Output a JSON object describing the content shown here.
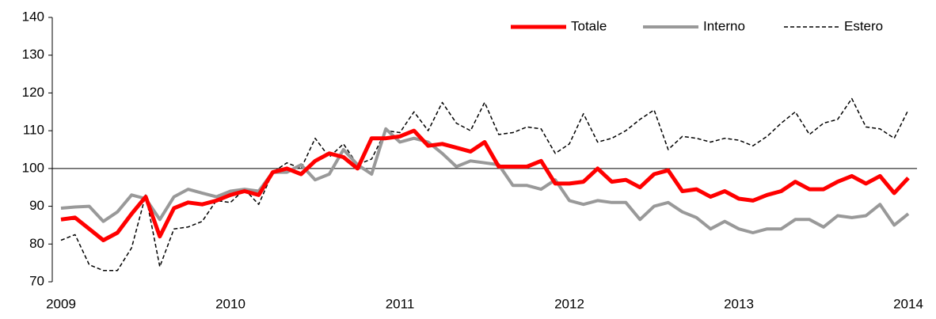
{
  "chart_data": {
    "type": "line",
    "categories": [
      "2009",
      null,
      null,
      null,
      null,
      null,
      null,
      null,
      null,
      null,
      null,
      null,
      "2010",
      null,
      null,
      null,
      null,
      null,
      null,
      null,
      null,
      null,
      null,
      null,
      "2011",
      null,
      null,
      null,
      null,
      null,
      null,
      null,
      null,
      null,
      null,
      null,
      "2012",
      null,
      null,
      null,
      null,
      null,
      null,
      null,
      null,
      null,
      null,
      null,
      "2013",
      null,
      null,
      null,
      null,
      null,
      null,
      null,
      null,
      null,
      null,
      null,
      "2014"
    ],
    "series": [
      {
        "name": "Totale",
        "color": "#ff0000",
        "width": 5,
        "dashed": false,
        "values": [
          86.5,
          87,
          84,
          81,
          83,
          88,
          92.5,
          82,
          89.5,
          91,
          90.5,
          91.5,
          93,
          94,
          93,
          99,
          100,
          98.5,
          102,
          104,
          103,
          100,
          108,
          108,
          108.5,
          110,
          106,
          106.5,
          105.5,
          104.5,
          107,
          100.5,
          100.5,
          100.5,
          102,
          96,
          96,
          96.5,
          100,
          96.5,
          97,
          95,
          98.5,
          99.5,
          94,
          94.5,
          92.5,
          94,
          92,
          91.5,
          93,
          94,
          96.5,
          94.5,
          94.5,
          96.5,
          98,
          96,
          98,
          93.5,
          97.5
        ]
      },
      {
        "name": "Interno",
        "color": "#999999",
        "width": 4,
        "dashed": false,
        "values": [
          89.5,
          89.8,
          90,
          86,
          88.5,
          93,
          92,
          86.5,
          92.5,
          94.5,
          93.5,
          92.5,
          94,
          94.5,
          94,
          99,
          99,
          101,
          97,
          98.5,
          105,
          101,
          98.5,
          110.5,
          107,
          108,
          107,
          104,
          100.5,
          102,
          101.5,
          101,
          95.5,
          95.5,
          94.5,
          97,
          91.5,
          90.5,
          91.5,
          91,
          91,
          86.5,
          90,
          91,
          88.5,
          87,
          84,
          86,
          84,
          83,
          84,
          84,
          86.5,
          86.5,
          84.5,
          87.5,
          87,
          87.5,
          90.5,
          85,
          88
        ]
      },
      {
        "name": "Estero",
        "color": "#000000",
        "width": 1.5,
        "dashed": true,
        "values": [
          81,
          82.5,
          74.5,
          73,
          73,
          79,
          93,
          74,
          84,
          84.5,
          86,
          91.5,
          91,
          94.5,
          90.5,
          99,
          101.5,
          100,
          108,
          103,
          106.5,
          101,
          102.5,
          110,
          109.5,
          115,
          110,
          117.5,
          112,
          110,
          117.5,
          109,
          109.5,
          111,
          110.5,
          104,
          106.5,
          114.5,
          107,
          108,
          110,
          113,
          115.5,
          105,
          108.5,
          108,
          107,
          108,
          107.5,
          106,
          108.5,
          112,
          115,
          109,
          112,
          113,
          118.5,
          111,
          110.5,
          108,
          115.5
        ]
      }
    ],
    "ylim": [
      70,
      140
    ],
    "yticks": [
      70,
      80,
      90,
      100,
      110,
      120,
      130,
      140
    ],
    "x_axis_at": 100,
    "legend": "top-right"
  }
}
